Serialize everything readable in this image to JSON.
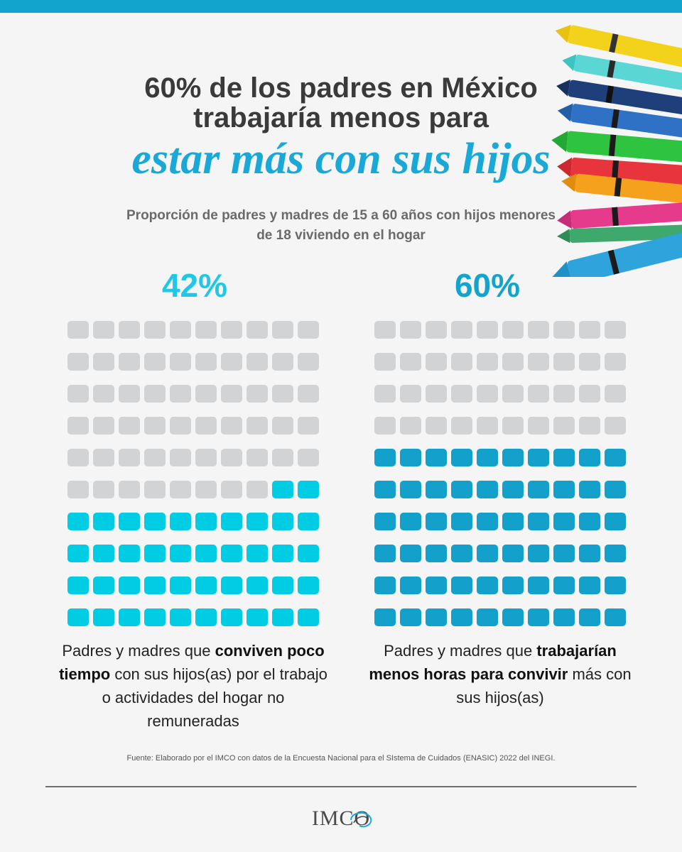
{
  "header": {
    "title_line1": "60% de los padres en México",
    "title_line2": "trabajaría menos para",
    "title_line3": "estar más con sus hijos",
    "subtitle": "Proporción de padres y madres de 15 a 60 años con hijos menores de 18 viviendo en el hogar"
  },
  "colors": {
    "bar_top": "#13a4cd",
    "empty_cell": "#d2d3d5",
    "left_fill": "#00cde4",
    "right_fill": "#13a0ca",
    "title_accent": "#1aa9d6"
  },
  "chart_data": [
    {
      "type": "waffle",
      "label": "42%",
      "value": 42,
      "total": 100,
      "grid": [
        10,
        10
      ],
      "description_parts": [
        "Padres y madres que ",
        "conviven poco tiempo",
        " con sus hijos(as) por el trabajo o actividades del hogar no remuneradas"
      ]
    },
    {
      "type": "waffle",
      "label": "60%",
      "value": 60,
      "total": 100,
      "grid": [
        10,
        10
      ],
      "description_parts": [
        "Padres y madres que ",
        "trabajarían menos horas para convivir",
        " más con sus hijos(as)"
      ]
    }
  ],
  "footer": {
    "source": "Fuente: Elaborado por el IMCO con datos de la Encuesta Nacional para el SIstema de Cuidados (ENASIC) 2022 del INEGI.",
    "logo_text": "IMCO"
  },
  "icons": {
    "crayons": "crayons-illustration",
    "logo_swirl": "imco-swirl-icon"
  }
}
